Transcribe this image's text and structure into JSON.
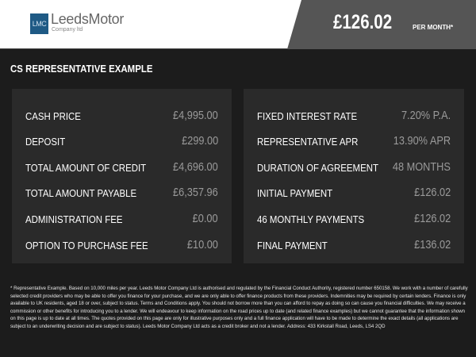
{
  "header": {
    "logo_mark": "LMC",
    "logo_name": "LeedsMotor",
    "logo_sub": "Company ltd",
    "price": "£126.02",
    "per_month": "PER MONTH*"
  },
  "title": "CS REPRESENTATIVE EXAMPLE",
  "left": [
    {
      "label": "CASH PRICE",
      "value": "£4,995.00"
    },
    {
      "label": "DEPOSIT",
      "value": "£299.00"
    },
    {
      "label": "TOTAL AMOUNT OF CREDIT",
      "value": "£4,696.00"
    },
    {
      "label": "TOTAL AMOUNT PAYABLE",
      "value": "£6,357.96"
    },
    {
      "label": "ADMINISTRATION FEE",
      "value": "£0.00"
    },
    {
      "label": "OPTION TO PURCHASE FEE",
      "value": "£10.00"
    }
  ],
  "right": [
    {
      "label": "FIXED INTEREST RATE",
      "value": "7.20% P.A."
    },
    {
      "label": "REPRESENTATIVE APR",
      "value": "13.90% APR"
    },
    {
      "label": "DURATION OF AGREEMENT",
      "value": "48 MONTHS"
    },
    {
      "label": "INITIAL PAYMENT",
      "value": "£126.02"
    },
    {
      "label": "46 MONTHLY PAYMENTS",
      "value": "£126.02"
    },
    {
      "label": "FINAL PAYMENT",
      "value": "£136.02"
    }
  ],
  "footer": "* Representative Example. Based on 10,000 miles per year. Leeds Motor Company Ltd is authorised and regulated by the Financial Conduct Authority, registered number 650158. We work with a number of carefully selected credit providers who may be able to offer you finance for your purchase, and we are only able to offer finance products from these providers. Indemnities may be required by certain lenders. Finance is only available to UK residents, aged 18 or over, subject to status. Terms and Conditions apply. You should not borrow more than you can afford to repay as doing so can cause you financial difficulties. We may receive a commission or other benefits for introducing you to a lender. We will endeavour to keep information on the road prices up to date (and related finance examples) but we cannot guarantee that the information shown on this page is up to date at all times. The quotes provided on this page are only for illustrative purposes only and a full finance application will have to be made to determine the exact details (all applications are subject to an underwriting decision and are subject to status). Leeds Motor Company Ltd acts as a credit broker and not a lender. Address: 433 Kirkstall Road, Leeds, LS4 2QD"
}
